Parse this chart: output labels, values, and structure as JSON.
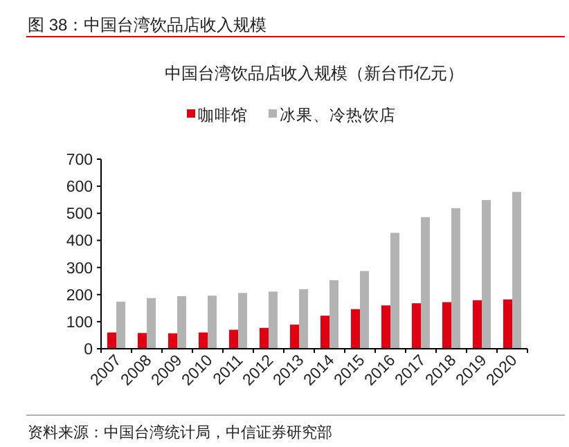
{
  "chart_data": {
    "type": "bar",
    "title": "图 38：中国台湾饮品店收入规模",
    "subtitle": "中国台湾饮品店收入规模（新台币亿元）",
    "categories": [
      "2007",
      "2008",
      "2009",
      "2010",
      "2011",
      "2012",
      "2013",
      "2014",
      "2015",
      "2016",
      "2017",
      "2018",
      "2019",
      "2020"
    ],
    "series": [
      {
        "name": "咖啡馆",
        "color": "#e00012",
        "values": [
          60,
          58,
          57,
          60,
          70,
          77,
          89,
          122,
          146,
          160,
          168,
          172,
          179,
          182
        ]
      },
      {
        "name": "冰果、冷热饮店",
        "color": "#b3b3b3",
        "values": [
          174,
          187,
          194,
          196,
          206,
          211,
          220,
          253,
          287,
          428,
          486,
          519,
          549,
          579
        ]
      }
    ],
    "ylim": [
      0,
      700
    ],
    "yticks": [
      0,
      100,
      200,
      300,
      400,
      500,
      600,
      700
    ],
    "legend": "top",
    "annotations": [
      "资料来源：中国台湾统计局，中信证券研究部"
    ]
  }
}
